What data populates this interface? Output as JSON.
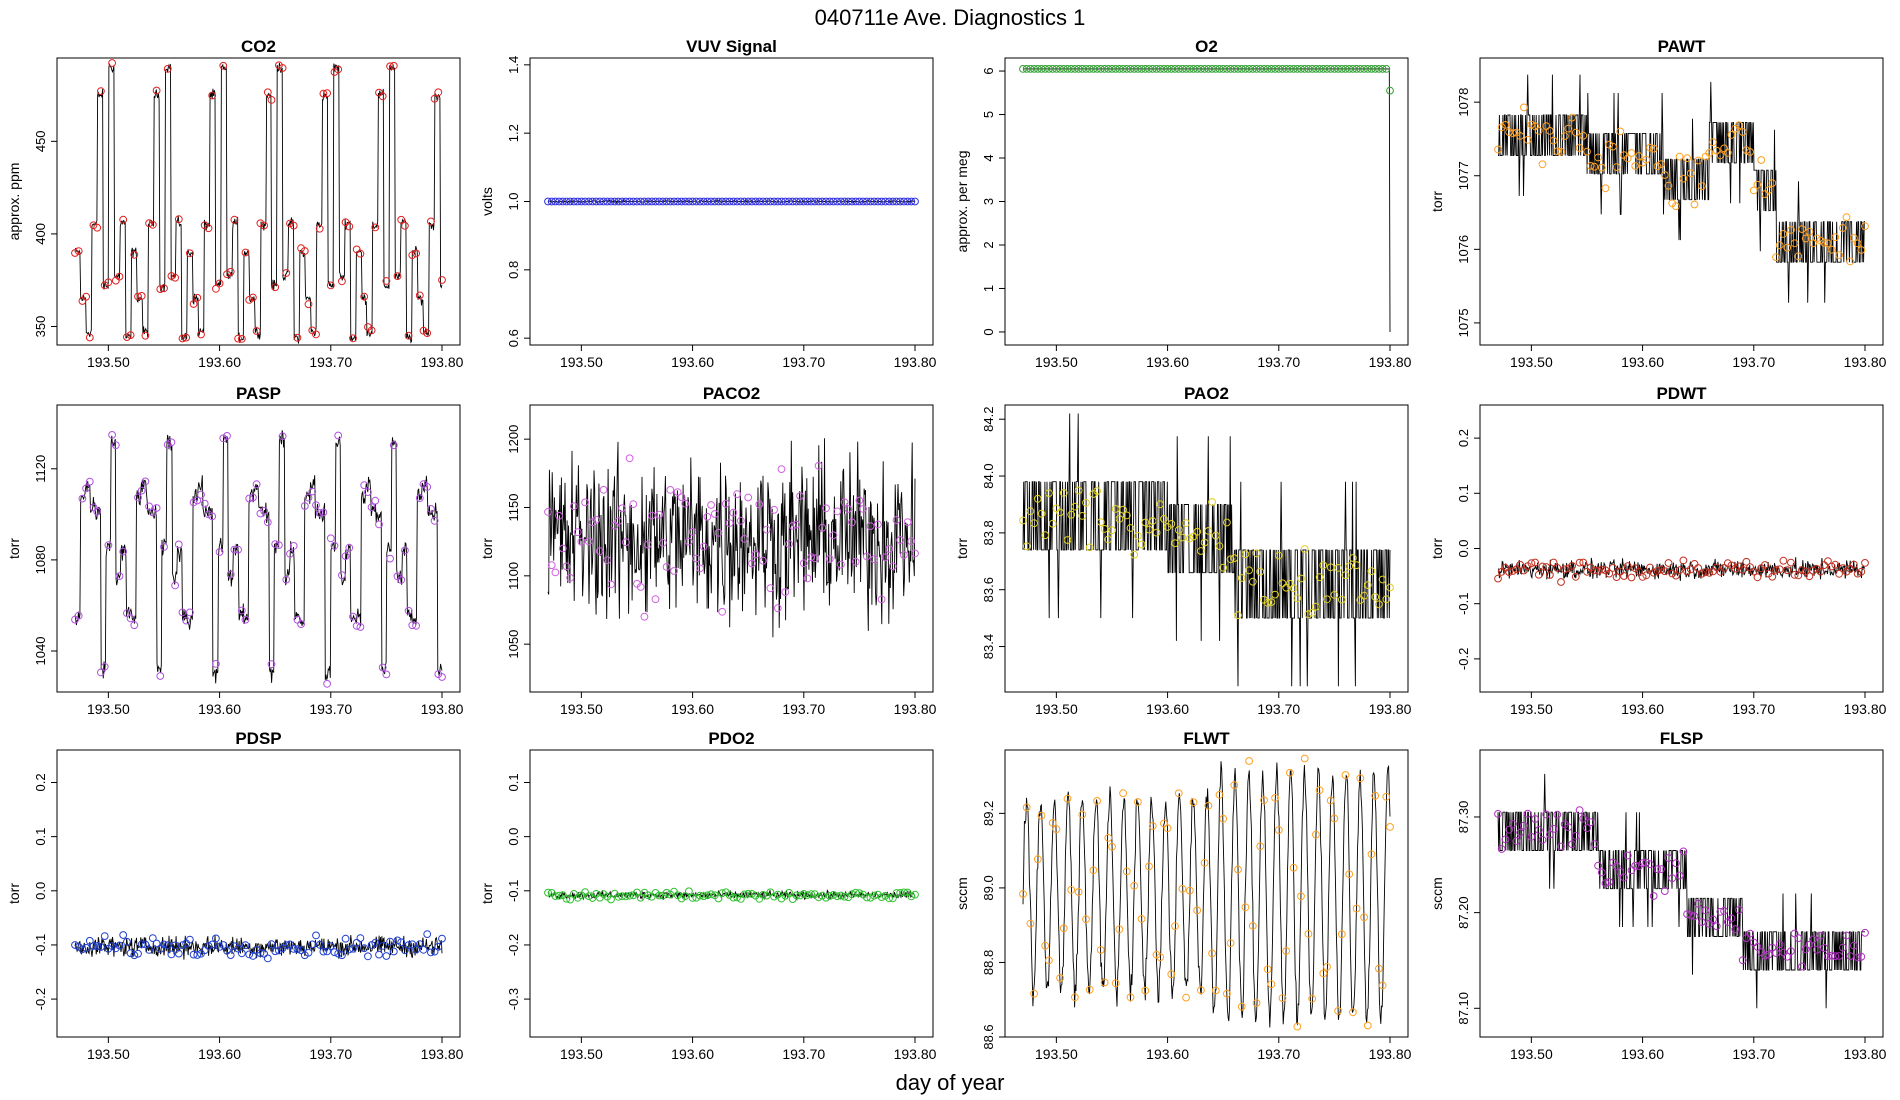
{
  "figure": {
    "title": "040711e   Ave. Diagnostics 1",
    "xlabel": "day of year",
    "x_range": [
      193.47,
      193.8
    ],
    "x_ticks": [
      193.5,
      193.6,
      193.7,
      193.8
    ],
    "x_tick_labels": [
      "193.50",
      "193.60",
      "193.70",
      "193.80"
    ]
  },
  "chart_data": [
    {
      "type": "line",
      "title": "CO2",
      "ylabel": "approx. ppm",
      "ylim": [
        340,
        495
      ],
      "yticks": [
        350,
        400,
        450
      ],
      "ytick_labels": [
        "350",
        "400",
        "450"
      ],
      "pattern": "cycle",
      "period": 0.0505,
      "noise": 2,
      "cycle_values": [
        390,
        365,
        347,
        405,
        475,
        372,
        490,
        377,
        406,
        344
      ],
      "marker_color": "#e02020"
    },
    {
      "type": "line",
      "title": "VUV Signal",
      "ylabel": "volts",
      "ylim": [
        0.58,
        1.42
      ],
      "yticks": [
        0.6,
        0.8,
        1.0,
        1.2,
        1.4
      ],
      "ytick_labels": [
        "0.6",
        "0.8",
        "1.0",
        "1.2",
        "1.4"
      ],
      "pattern": "constant",
      "value": 1.0,
      "noise": 0.002,
      "marker_color": "#3030e0"
    },
    {
      "type": "line",
      "title": "O2",
      "ylabel": "approx. per meg",
      "ylim": [
        -0.3,
        6.3
      ],
      "yticks": [
        0,
        1,
        2,
        3,
        4,
        5,
        6
      ],
      "ytick_labels": [
        "0",
        "1",
        "2",
        "3",
        "4",
        "5",
        "6"
      ],
      "pattern": "constant",
      "value": 6.05,
      "noise": 0.0,
      "end_value": 5.55,
      "end_drop": 0,
      "marker_color": "#30a030"
    },
    {
      "type": "line",
      "title": "PAWT",
      "ylabel": "torr",
      "ylim": [
        1074.7,
        1078.6
      ],
      "yticks": [
        1075,
        1076,
        1077,
        1078
      ],
      "ytick_labels": [
        "1075",
        "1076",
        "1077",
        "1078"
      ],
      "pattern": "quantized",
      "levels": [
        [
          193.47,
          1077.55
        ],
        [
          193.55,
          1077.3
        ],
        [
          193.62,
          1076.95
        ],
        [
          193.66,
          1077.45
        ],
        [
          193.7,
          1076.8
        ],
        [
          193.72,
          1076.1
        ]
      ],
      "quantum": 0.55,
      "noise": 0.35,
      "marker_color": "#ffa020"
    },
    {
      "type": "line",
      "title": "PASP",
      "ylabel": "torr",
      "ylim": [
        1022,
        1148
      ],
      "yticks": [
        1040,
        1080,
        1120
      ],
      "ytick_labels": [
        "1040",
        "1080",
        "1120"
      ],
      "pattern": "cycle",
      "period": 0.0505,
      "noise": 3,
      "cycle_values": [
        1054,
        1108,
        1112,
        1102,
        1100,
        1031,
        1086,
        1132,
        1072,
        1084,
        1056
      ],
      "marker_color": "#b050e0"
    },
    {
      "type": "line",
      "title": "PACO2",
      "ylabel": "torr",
      "ylim": [
        1015,
        1225
      ],
      "yticks": [
        1050,
        1100,
        1150,
        1200
      ],
      "ytick_labels": [
        "1050",
        "1100",
        "1150",
        "1200"
      ],
      "pattern": "noise",
      "value": 1128,
      "noise": 42,
      "marker_color": "#d060e0"
    },
    {
      "type": "line",
      "title": "PAO2",
      "ylabel": "torr",
      "ylim": [
        83.24,
        84.25
      ],
      "yticks": [
        83.4,
        83.6,
        83.8,
        84.0,
        84.2
      ],
      "ytick_labels": [
        "83.4",
        "83.6",
        "83.8",
        "84.0",
        "84.2"
      ],
      "pattern": "quantized",
      "levels": [
        [
          193.47,
          83.86
        ],
        [
          193.6,
          83.78
        ],
        [
          193.66,
          83.62
        ]
      ],
      "quantum": 0.24,
      "noise": 0.12,
      "marker_color": "#e0d020"
    },
    {
      "type": "line",
      "title": "PDWT",
      "ylabel": "torr",
      "ylim": [
        -0.26,
        0.26
      ],
      "yticks": [
        -0.2,
        -0.1,
        0.0,
        0.1,
        0.2
      ],
      "ytick_labels": [
        "-0.2",
        "-0.1",
        "0.0",
        "0.1",
        "0.2"
      ],
      "pattern": "noise",
      "value": -0.038,
      "noise": 0.012,
      "marker_color": "#c03020"
    },
    {
      "type": "line",
      "title": "PDSP",
      "ylabel": "torr",
      "ylim": [
        -0.27,
        0.26
      ],
      "yticks": [
        -0.2,
        -0.1,
        0.0,
        0.1,
        0.2
      ],
      "ytick_labels": [
        "-0.2",
        "-0.1",
        "0.0",
        "0.1",
        "0.2"
      ],
      "pattern": "noise",
      "value": -0.103,
      "noise": 0.013,
      "marker_color": "#2040d0"
    },
    {
      "type": "line",
      "title": "PDO2",
      "ylabel": "torr",
      "ylim": [
        -0.37,
        0.16
      ],
      "yticks": [
        -0.3,
        -0.2,
        -0.1,
        0.0,
        0.1
      ],
      "ytick_labels": [
        "-0.3",
        "-0.2",
        "-0.1",
        "0.0",
        "0.1"
      ],
      "pattern": "noise",
      "value": -0.108,
      "noise": 0.005,
      "marker_color": "#30c030"
    },
    {
      "type": "line",
      "title": "FLWT",
      "ylabel": "sccm",
      "ylim": [
        88.6,
        89.37
      ],
      "yticks": [
        88.6,
        88.8,
        89.0,
        89.2
      ],
      "ytick_labels": [
        "88.6",
        "88.8",
        "89.0",
        "89.2"
      ],
      "pattern": "sine",
      "value": 88.98,
      "amplitude": 0.26,
      "period": 0.0125,
      "amp_change_x": 193.64,
      "amplitude2": 0.33,
      "noise": 0.03,
      "marker_color": "#ffa020"
    },
    {
      "type": "line",
      "title": "FLSP",
      "ylabel": "sccm",
      "ylim": [
        87.07,
        87.37
      ],
      "yticks": [
        87.1,
        87.2,
        87.3
      ],
      "ytick_labels": [
        "87.10",
        "87.20",
        "87.30"
      ],
      "pattern": "quantized",
      "levels": [
        [
          193.47,
          87.285
        ],
        [
          193.56,
          87.245
        ],
        [
          193.64,
          87.195
        ],
        [
          193.69,
          87.16
        ]
      ],
      "quantum": 0.04,
      "noise": 0.02,
      "marker_color": "#b030c0"
    }
  ]
}
